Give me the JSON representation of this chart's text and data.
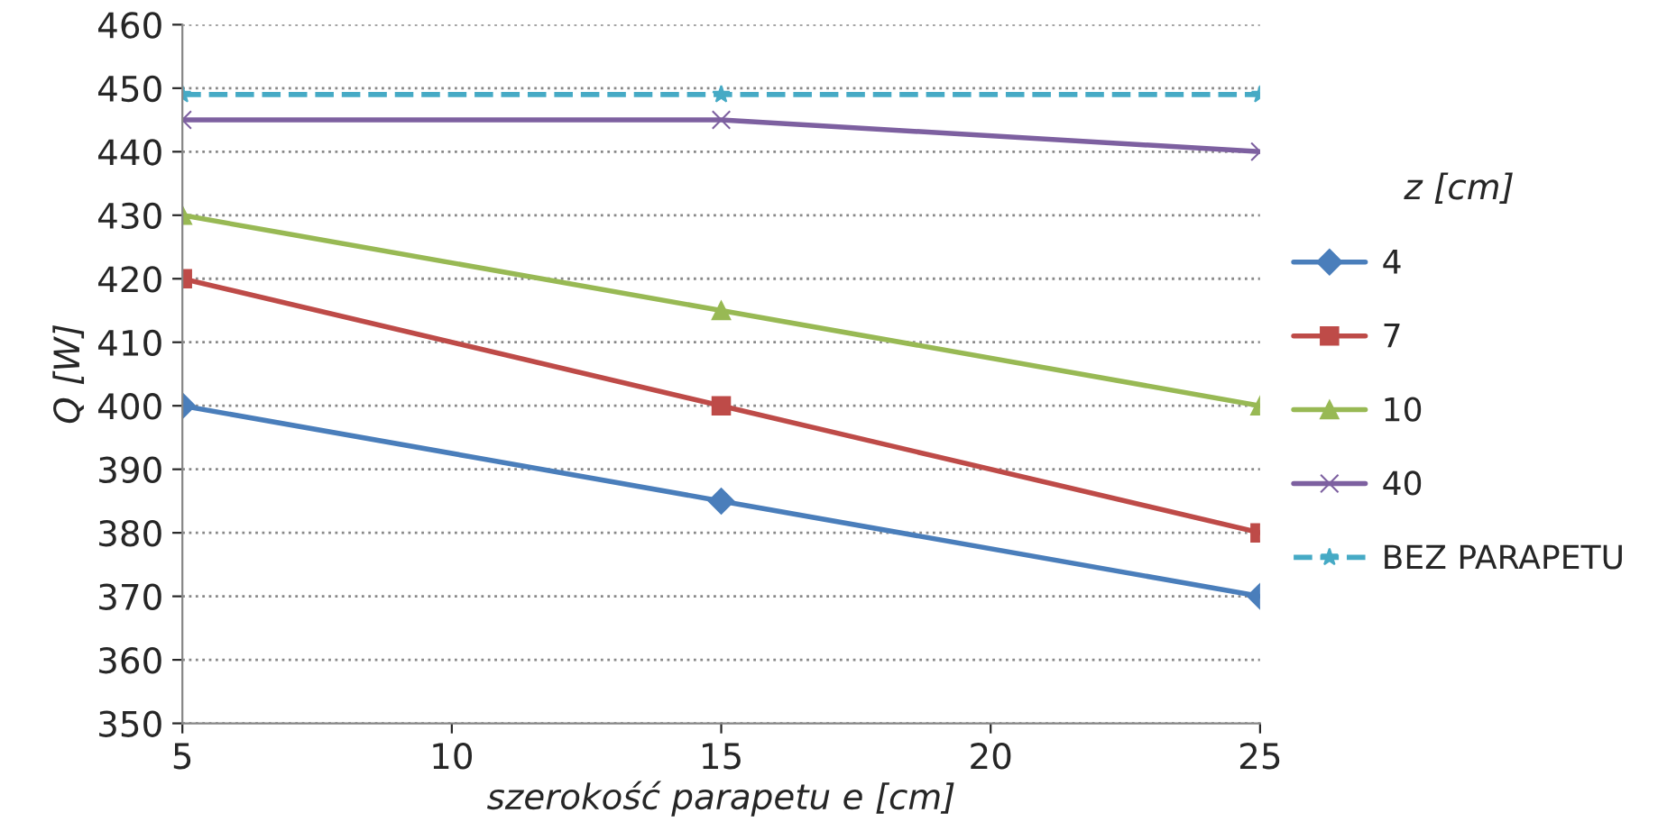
{
  "chart_data": {
    "type": "line",
    "xlabel": "szerokość parapetu e [cm]",
    "ylabel": "Q [W]",
    "legend_title": "z [cm]",
    "x": [
      5,
      15,
      25
    ],
    "series": [
      {
        "name": "4",
        "color": "#4a7ebb",
        "marker": "diamond",
        "line_style": "solid",
        "values": [
          400,
          385,
          370
        ]
      },
      {
        "name": "7",
        "color": "#be4b48",
        "marker": "square",
        "line_style": "solid",
        "values": [
          420,
          400,
          380
        ]
      },
      {
        "name": "10",
        "color": "#98b954",
        "marker": "triangle",
        "line_style": "solid",
        "values": [
          430,
          415,
          400
        ]
      },
      {
        "name": "40",
        "color": "#7d60a0",
        "marker": "cross",
        "line_style": "solid",
        "values": [
          445,
          445,
          440
        ]
      },
      {
        "name": "BEZ PARAPETU",
        "color": "#46aac5",
        "marker": "star",
        "line_style": "dashed",
        "values": [
          449,
          449,
          449
        ]
      }
    ],
    "xlim": [
      5,
      25
    ],
    "xticks": [
      5,
      10,
      15,
      20,
      25
    ],
    "ylim": [
      350,
      460
    ],
    "yticks": [
      350,
      360,
      370,
      380,
      390,
      400,
      410,
      420,
      430,
      440,
      450,
      460
    ],
    "grid": "y",
    "legend": "right"
  }
}
